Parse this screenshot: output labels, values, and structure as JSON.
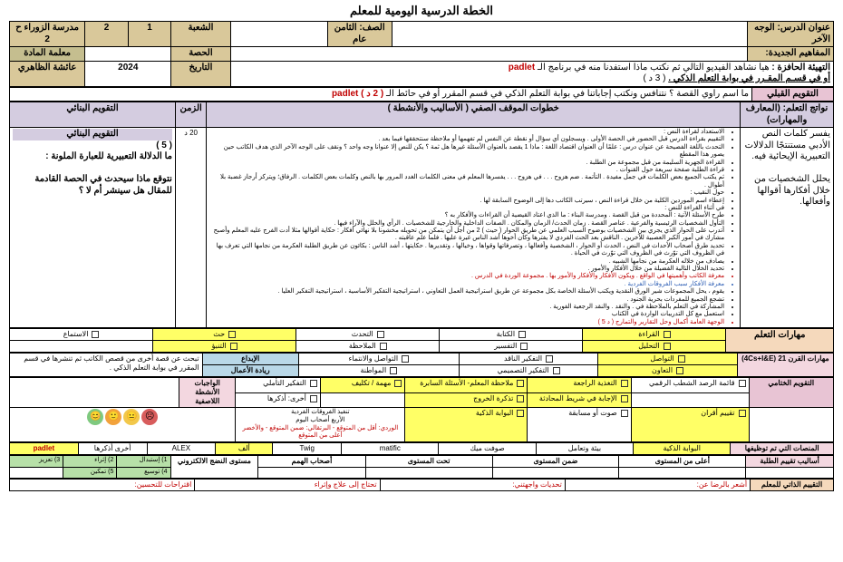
{
  "title": "الخطة الدرسية اليومية للمعلم",
  "hdr": {
    "lesson_title_lbl": "عنوان الدرس:",
    "lesson_title": "الوجه الآخر",
    "grade_lbl": "الصف:",
    "grade": "الثامن عام",
    "section_lbl": "الشعبة",
    "school_lbl": "مدرسة الزوراء ح 2",
    "section_vals": [
      "1",
      "2"
    ],
    "concepts_lbl": "المفاهيم الجديدة:",
    "session_lbl": "الحصة",
    "teacher_lbl": "معلمة المادة",
    "date_lbl": "التاريخ",
    "year": "2024",
    "teacher": "عائشة الظاهري"
  },
  "stimulus": {
    "lbl": "التهيئة الحافزة :",
    "txt": "هيا نشاهد الفيديو التالي ثم نكتب ماذا استفدنا منه في برنامج الـ",
    "app": "padlet",
    "line2a": "أو في قسـم المقـرر في بوابة التعلم الذكي .",
    "line2b": "( 3 د )"
  },
  "pre_eval": {
    "lbl": "التقويم القبلي",
    "txt": "ما اسم راوي القصة ؟ نتنافس ونكتب إجاباتنا في بوابة التعلم الذكي في قسم المقرر أو في حائط الـ",
    "span": "( 2 د ) padlet"
  },
  "cols": {
    "outcomes": "نواتج التعلم: (المعارف والمهارات)",
    "steps": "خطوات الموقف الصفي ( الأساليب والأنشطة )",
    "time": "الزمن",
    "formative": "التقويم البنائي"
  },
  "outcomes": [
    "يفسر كلمات النص الأدبي مستنتجًا الدلالات التعبيرية الإيحائية فيه.",
    "يحلل الشخصيات من خلال أفكارها أقوالها وأفعالها."
  ],
  "time_val": "20 د",
  "steps": {
    "bullets": [
      "الاستعداد لقراءة النص :",
      "التقييم بقراءة الدرس قبل الحضور في الحصة الأولى . ويسجلون أي سؤال أو نقطة عن النفس لم تفهمها أو ملاحظة سنتحققها فيما بعد .",
      "التحدث باللغة الفصيحة عن عنوان درس : علمًا أن العنوان اقتصاد اللغة : ماذا 1 يقصد بالعنوان الأسئلة غيرها هل ثمة ؟ يكن للنص إلا عنوانا وجه واحد ؟ ونقف على الوجه الآخر الذي هدف الكاتب حين يصور هذا المقطع",
      "القراءة الجهرية السليمة من قبل مجموعة من الطلبة .",
      "قراءة الطلبة صفحة سريعة حول القنوات .",
      "ثم يكتب الجميع بعض الكلمات في جمل مفيدة . التأتمة . ضم هزوح . . . في هزوح . . . يفسرها المعلم في معنى الكلمات الغدد المرور بها بالنص وكلمات بعض الكلمات . الرفاق؛ ويتركز أرجاز غضبة بلا أطوال .",
      "حول النقيب :",
      "إعطاء اسم الموردين الكلية من خلال قراءة النص ، سيرتب الكاتب دها إلى الوضوح السابقة لها .",
      "في أثناء القراءة للنص :",
      "طرح الأسئلة الآتية : المحددة من قبل القصة . ومدرسة البناء : ما الذي اعتاد القيضية أن القراءات والأفكار به ؟",
      "التأول الشخصيات الرئيسية والفرعية . عناصر القصة . زمان الحدث/ الزمان والمكان . الصفات الداخلية والخارجية للشخصيات . الرأي والحلل والآراء فيها .",
      "أتدرب على الحوار الذي يجري بين الشخصيات بوضوح السبب العلمي عن طريق الحوار ( حيث ) 2 من أجل أن يتمكن من تحويله مخشونا بلا نهائي أفكار : حكاية أقوالها مثلا أدت الفرج عليه المعلم وأصبح مشارك في أمور الكبر العصبية للآخرين . الناقش بعد الحث الفردي لا يفترها وكان أخوها أشد الناس غيرة عليها . فلما علم عاقبته .",
      "تحديد طرق أصحاب الأحداث في النص ، الحدث أو الحوار ، الشخصية وأفعالها ، وتصرفاتها وقواها ، وخيالها ، وتقديرها . حكايتها ، أشد الناس : بكائون عن طريق الطلبة العكرمة من نجامها التي تعرف بها في الظروف التي توّرث في الظروف التي توّرث في الحياة .",
      "يصادف من خلاله العكرمة من نجامها الشبيه .",
      "تحديد الخلال التالية الفضيلة من خلال الأفكار والأمور .",
      "معرفة الكاتب وأهميتها في الواقع . ويكون الأفكار والأفكار والأمور بها . مجموعة الوردة في الدرس .",
      "معرفة الأفكار سبب الفروقات الفردية .",
      "يقوم ، يحل المجموعات شير الورق النقدية ويكتب الأسئلة الخاصة بكل مجموعة عن طريق استراتيجية العمل التعاوني ، استراتيجية التفكير الأساسية ، استراتيجية التفكير العليا .",
      "تشجع الجميع للمفردات بحرية الجنود .",
      "المشاركة في التعلم بالملاحظة في . والنقد . والنقد الرجعية الفورية .",
      "استعمل مع كل التدريبات الواردة في الكتاب",
      "الوجهة العامة أكمال وحل التقارير والتمارج ( د 5 )"
    ]
  },
  "formative": {
    "hdr": "التقويم البنائي",
    "score": "( 5 )",
    "q1": "ما الدلالة التعبيرية للعبارة الملونة :",
    "q2": "نتوقع ماذا سيحدث في الحصة القادمة للمقال هل سينشر أم لا ؟"
  },
  "skills": {
    "lbl": "مهارات التعلم",
    "items": [
      "القراءة",
      "الكتابة",
      "التحدث",
      "حث",
      "الاستماع"
    ],
    "items2": [
      "التحليل",
      "التفسير",
      "الملاحظة",
      "التنبؤ"
    ]
  },
  "c21": {
    "lbl": "مهارات القرن 21 (4Cs+I&E)",
    "items": [
      "التواصل",
      "التفكير الناقد",
      "التواصل والانتماء",
      "الإبداع"
    ],
    "items2": [
      "التعاون",
      "التفكير التصميمي",
      "المواطنة",
      "ريادة الأعمال"
    ]
  },
  "final": {
    "lbl": "التقويم الختامي",
    "col1": [
      "قائمة الرصد الشطب الرقمي",
      ""
    ],
    "col2": [
      "التغذية الراجعة",
      "الإجابة في شريط المحادثة"
    ],
    "col3": [
      "ملاحظة المعلم- الأسئلة السابرة",
      "تذكرة الخروج"
    ],
    "col4": [
      "مهمة / تكليف",
      ""
    ],
    "col5": [
      "التفكير التأملي",
      "أخرى: أذكرها"
    ],
    "col6_lbl": "الواجبات الأنشطة اللاصفية",
    "col6_txt": "تبحث عن قصة أخرى من قصص الكاتب ثم تنشرها في قسم المقرر في بوابة التعلم الذكي ."
  },
  "final2": {
    "items": [
      "تقييم أقران",
      "صوت أو مسابقة",
      "البوابة الذكية"
    ],
    "faces_lbl1": "تنفيذ الفروقات الفردية",
    "faces_lbl2": "الأربع أصحاب اليوم",
    "faces_note": "الوردي: أقل من المتوقع - البرتقالي: ضمن المتوقع - والأخضر أعلى من المتوقع"
  },
  "platforms": {
    "lbl": "المنصات التي تم توظيفها",
    "items": [
      "البوابة الذكية",
      "بيئة وتعامل",
      "صوفت ميك",
      "matific",
      "Twig",
      "ألف",
      "ALEX",
      "أخرى أذكرها",
      "padlet"
    ]
  },
  "levels": {
    "lbl": "أساليب تقييم الطلبة",
    "hdrs": [
      "أعلى من المستوى",
      "ضمن المستوى",
      "تحت المستوى",
      "أصحاب الهمم",
      "مستوى النضج الالكتروني"
    ],
    "mat": [
      "1) إستبدال",
      "2) إثراء",
      "3) تعزيز",
      "4) توسيع",
      "5) تمكين"
    ]
  },
  "self": {
    "lbl": "التقييم الذاتي للمعلم",
    "a": "أشعر بالرضا عن:",
    "b": "تحديات واجهتني:",
    "c": "تحتاج إلى علاج وإثراء",
    "d": "اقتراحات للتحسين:"
  }
}
